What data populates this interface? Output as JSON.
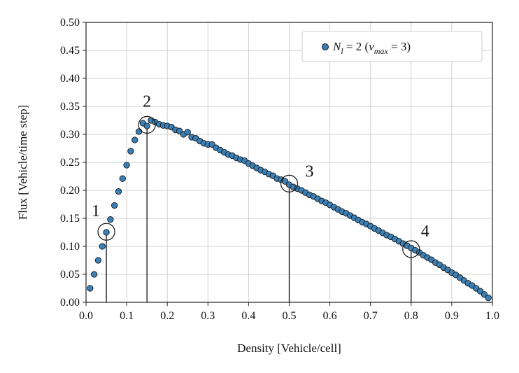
{
  "chart_data": {
    "type": "scatter",
    "title": "",
    "xlabel": "Density [Vehicle/cell]",
    "ylabel": "Flux [Vehicle/time step]",
    "xlim": [
      0.0,
      1.0
    ],
    "ylim": [
      0.0,
      0.5
    ],
    "x_ticks": [
      0.0,
      0.1,
      0.2,
      0.3,
      0.4,
      0.5,
      0.6,
      0.7,
      0.8,
      0.9,
      1.0
    ],
    "y_ticks": [
      0.0,
      0.05,
      0.1,
      0.15,
      0.2,
      0.25,
      0.3,
      0.35,
      0.4,
      0.45,
      0.5
    ],
    "x_tick_labels": [
      "0.0",
      "0.1",
      "0.2",
      "0.3",
      "0.4",
      "0.5",
      "0.6",
      "0.7",
      "0.8",
      "0.9",
      "1.0"
    ],
    "y_tick_labels": [
      "0.00",
      "0.05",
      "0.10",
      "0.15",
      "0.20",
      "0.25",
      "0.30",
      "0.35",
      "0.40",
      "0.45",
      "0.50"
    ],
    "grid": true,
    "legend_position": "top-right",
    "marker_color": "#3a7fb5",
    "series": [
      {
        "legend": {
          "symbol": "N",
          "subscript": "l",
          "value_text": " = 2  (",
          "vmax_symbol": "v",
          "vmax_subscript": "max",
          "vmax_text": " = 3)"
        },
        "x": [
          0.01,
          0.02,
          0.03,
          0.04,
          0.05,
          0.06,
          0.07,
          0.08,
          0.09,
          0.1,
          0.11,
          0.12,
          0.13,
          0.14,
          0.15,
          0.16,
          0.17,
          0.18,
          0.19,
          0.2,
          0.21,
          0.22,
          0.23,
          0.24,
          0.25,
          0.26,
          0.27,
          0.28,
          0.29,
          0.3,
          0.31,
          0.32,
          0.33,
          0.34,
          0.35,
          0.36,
          0.37,
          0.38,
          0.39,
          0.4,
          0.41,
          0.42,
          0.43,
          0.44,
          0.45,
          0.46,
          0.47,
          0.48,
          0.49,
          0.5,
          0.51,
          0.52,
          0.53,
          0.54,
          0.55,
          0.56,
          0.57,
          0.58,
          0.59,
          0.6,
          0.61,
          0.62,
          0.63,
          0.64,
          0.65,
          0.66,
          0.67,
          0.68,
          0.69,
          0.7,
          0.71,
          0.72,
          0.73,
          0.74,
          0.75,
          0.76,
          0.77,
          0.78,
          0.79,
          0.8,
          0.81,
          0.82,
          0.83,
          0.84,
          0.85,
          0.86,
          0.87,
          0.88,
          0.89,
          0.9,
          0.91,
          0.92,
          0.93,
          0.94,
          0.95,
          0.96,
          0.97,
          0.98,
          0.99
        ],
        "y": [
          0.025,
          0.05,
          0.075,
          0.1,
          0.125,
          0.148,
          0.173,
          0.198,
          0.221,
          0.245,
          0.27,
          0.29,
          0.305,
          0.32,
          0.315,
          0.325,
          0.322,
          0.318,
          0.316,
          0.315,
          0.313,
          0.308,
          0.306,
          0.3,
          0.304,
          0.295,
          0.293,
          0.288,
          0.284,
          0.282,
          0.282,
          0.276,
          0.272,
          0.268,
          0.264,
          0.262,
          0.258,
          0.255,
          0.253,
          0.248,
          0.244,
          0.24,
          0.236,
          0.233,
          0.229,
          0.226,
          0.221,
          0.219,
          0.216,
          0.21,
          0.206,
          0.203,
          0.2,
          0.196,
          0.192,
          0.189,
          0.185,
          0.181,
          0.178,
          0.174,
          0.17,
          0.166,
          0.162,
          0.159,
          0.155,
          0.151,
          0.147,
          0.143,
          0.14,
          0.136,
          0.132,
          0.128,
          0.124,
          0.12,
          0.117,
          0.113,
          0.109,
          0.105,
          0.101,
          0.097,
          0.093,
          0.089,
          0.084,
          0.08,
          0.076,
          0.071,
          0.067,
          0.062,
          0.058,
          0.053,
          0.049,
          0.044,
          0.039,
          0.034,
          0.03,
          0.025,
          0.02,
          0.014,
          0.008
        ]
      }
    ],
    "annotations": [
      {
        "label": "1",
        "x": 0.05,
        "y": 0.126
      },
      {
        "label": "2",
        "x": 0.15,
        "y": 0.317
      },
      {
        "label": "3",
        "x": 0.5,
        "y": 0.212
      },
      {
        "label": "4",
        "x": 0.8,
        "y": 0.095
      }
    ]
  }
}
